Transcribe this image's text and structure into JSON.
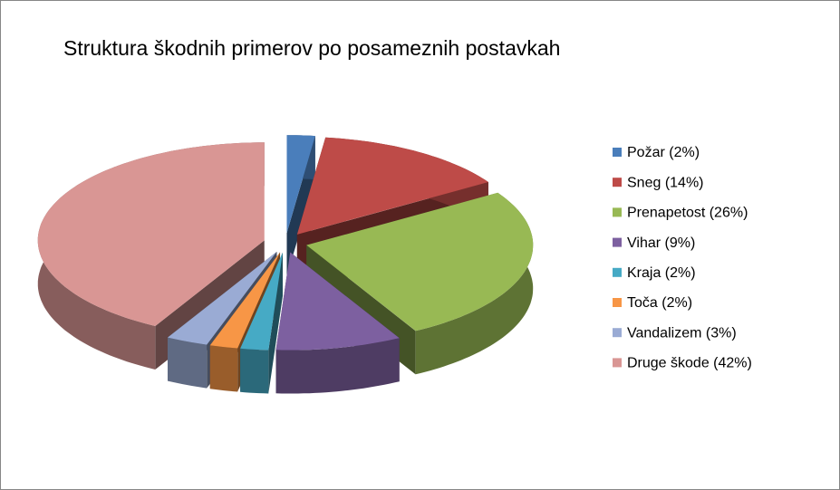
{
  "chart_data": {
    "type": "pie",
    "title": "Struktura škodnih primerov po posameznih postavkah",
    "categories": [
      "Požar (2%)",
      "Sneg (14%)",
      "Prenapetost (26%)",
      "Vihar (9%)",
      "Kraja (2%)",
      "Toča (2%)",
      "Vandalizem (3%)",
      "Druge škode (42%)"
    ],
    "values": [
      2,
      14,
      26,
      9,
      2,
      2,
      3,
      42
    ],
    "colors": [
      "#4a7ebb",
      "#be4b48",
      "#98b954",
      "#7d60a0",
      "#46aac5",
      "#f79646",
      "#9aabd4",
      "#d99694"
    ],
    "legend": "right"
  }
}
